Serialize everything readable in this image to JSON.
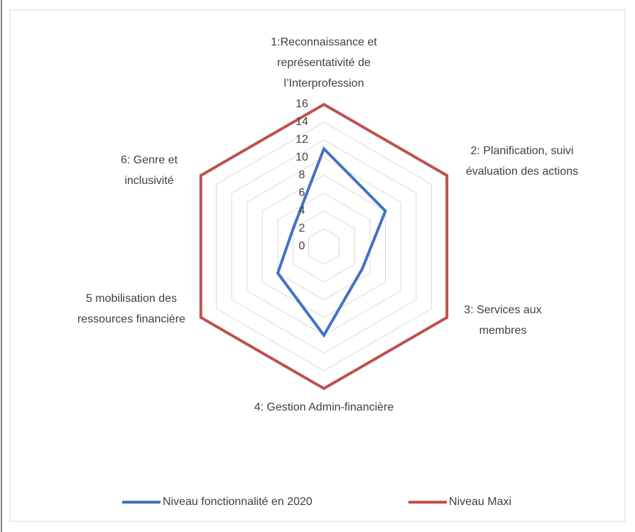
{
  "chart_data": {
    "type": "radar",
    "categories": [
      "1:Reconnaissance et représentativité de l’Interprofession",
      "2:  Planification, suivi évaluation des actions",
      "3: Services aux membres",
      "4: Gestion Admin-financière",
      "5 mobilisation des ressources financière",
      "6: Genre et inclusivité"
    ],
    "series": [
      {
        "name": "Niveau fonctionnalité en 2020",
        "color": "#4472c4",
        "values": [
          11,
          8,
          5,
          10,
          6,
          4
        ]
      },
      {
        "name": "Niveau Maxi",
        "color": "#c0504d",
        "values": [
          16,
          16,
          16,
          16,
          16,
          16
        ]
      }
    ],
    "ylim": [
      0,
      16
    ],
    "yticks": [
      0,
      2,
      4,
      6,
      8,
      10,
      12,
      14,
      16
    ],
    "grid": true,
    "legend": "bottom"
  }
}
